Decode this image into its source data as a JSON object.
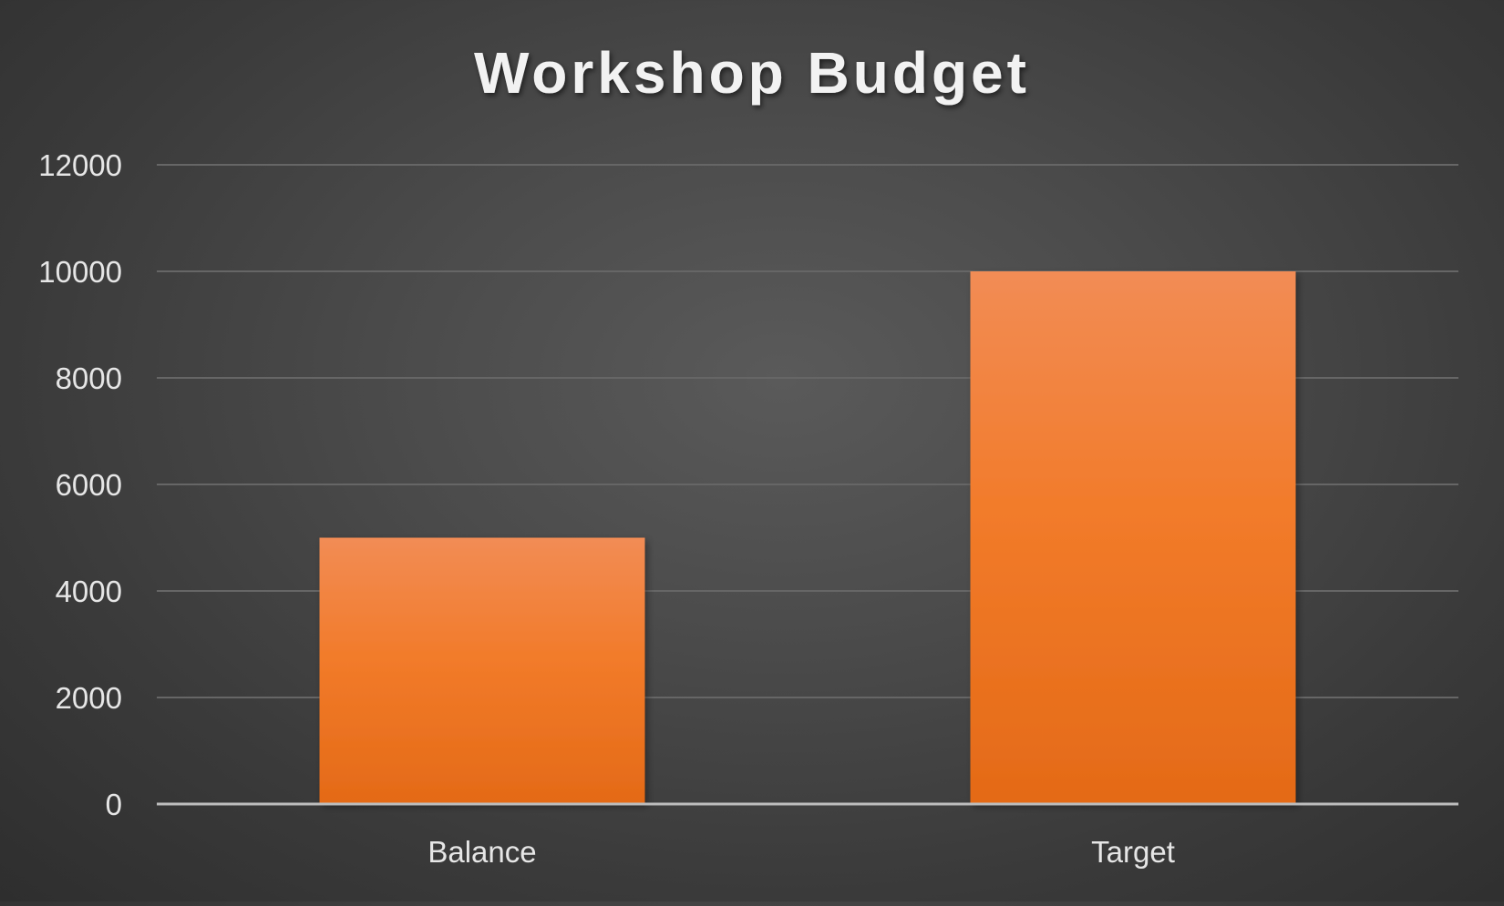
{
  "chart_data": {
    "type": "bar",
    "title": "Workshop Budget",
    "categories": [
      "Balance",
      "Target"
    ],
    "values": [
      5000,
      10000
    ],
    "ylim": [
      0,
      12000
    ],
    "yticks": [
      "0",
      "2000",
      "4000",
      "6000",
      "8000",
      "10000",
      "12000"
    ],
    "grid": true,
    "legend": "none",
    "colors": {
      "bar_top": "#f28c55",
      "bar_mid": "#f27b2a",
      "bar_bottom": "#e46a17",
      "background": "#4b4b4b"
    }
  }
}
